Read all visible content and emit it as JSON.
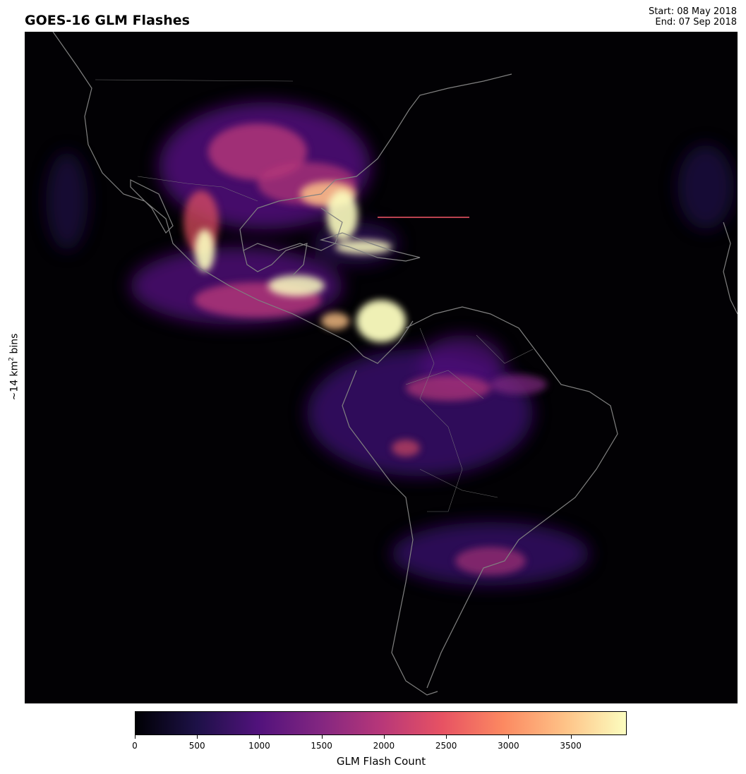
{
  "title": "GOES-16 GLM Flashes",
  "date_start": "Start: 08 May 2018",
  "date_end": "End: 07 Sep 2018",
  "ylabel_prefix": "~14 km",
  "ylabel_sup": "2",
  "ylabel_suffix": " bins",
  "colorbar": {
    "label": "GLM Flash Count",
    "colormap": "magma",
    "range": [
      0,
      3950
    ],
    "ticks": [
      0,
      500,
      1000,
      1500,
      2000,
      2500,
      3000,
      3500
    ],
    "tick_labels": [
      "0",
      "500",
      "1000",
      "1500",
      "2000",
      "2500",
      "3000",
      "3500"
    ],
    "stops": [
      "#000004",
      "#1d1147",
      "#51127c",
      "#822681",
      "#b73779",
      "#e75263",
      "#fc8961",
      "#fec287",
      "#fcfdbf"
    ]
  },
  "map": {
    "background": "#020104",
    "coastline_color": "#808080"
  }
}
